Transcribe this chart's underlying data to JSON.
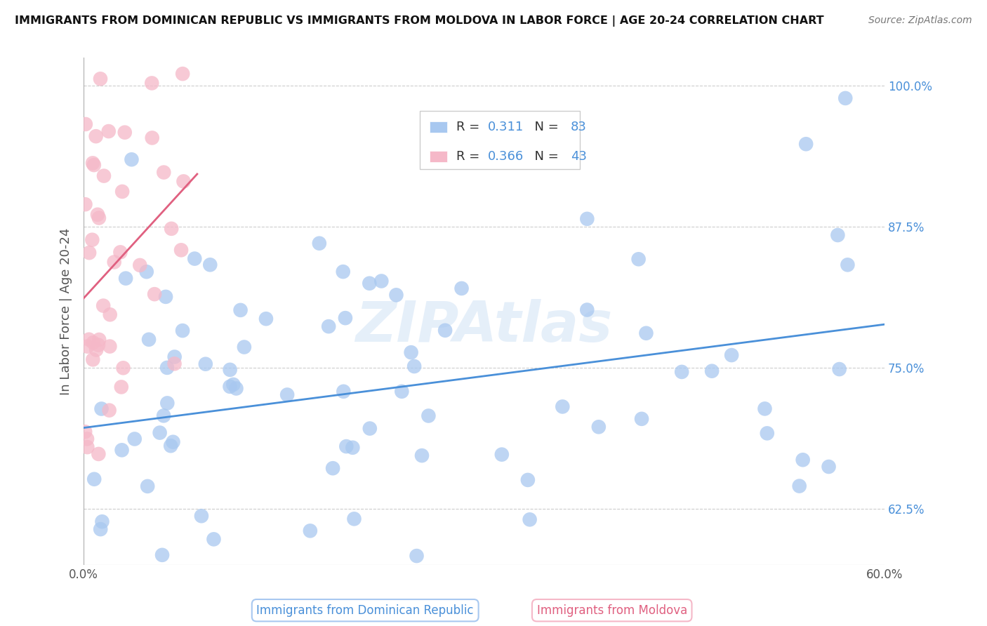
{
  "title": "IMMIGRANTS FROM DOMINICAN REPUBLIC VS IMMIGRANTS FROM MOLDOVA IN LABOR FORCE | AGE 20-24 CORRELATION CHART",
  "source": "Source: ZipAtlas.com",
  "xlabel_blue": "Immigrants from Dominican Republic",
  "xlabel_pink": "Immigrants from Moldova",
  "ylabel": "In Labor Force | Age 20-24",
  "watermark": "ZIPAtlas",
  "xlim": [
    0.0,
    0.6
  ],
  "ylim": [
    0.575,
    1.025
  ],
  "ytick_values": [
    0.625,
    0.75,
    0.875,
    1.0
  ],
  "ytick_labels": [
    "62.5%",
    "75.0%",
    "87.5%",
    "100.0%"
  ],
  "R_blue": 0.311,
  "N_blue": 83,
  "R_pink": 0.366,
  "N_pink": 43,
  "blue_color": "#a8c8f0",
  "pink_color": "#f5b8c8",
  "blue_line_color": "#4a90d9",
  "pink_line_color": "#e06080",
  "grid_color": "#cccccc",
  "background_color": "#ffffff",
  "tick_color": "#4a90d9",
  "blue_line_y0": 0.685,
  "blue_line_y1": 0.83,
  "pink_line_x0": -0.005,
  "pink_line_x1": 0.085,
  "pink_line_y0": 0.64,
  "pink_line_y1": 1.02
}
